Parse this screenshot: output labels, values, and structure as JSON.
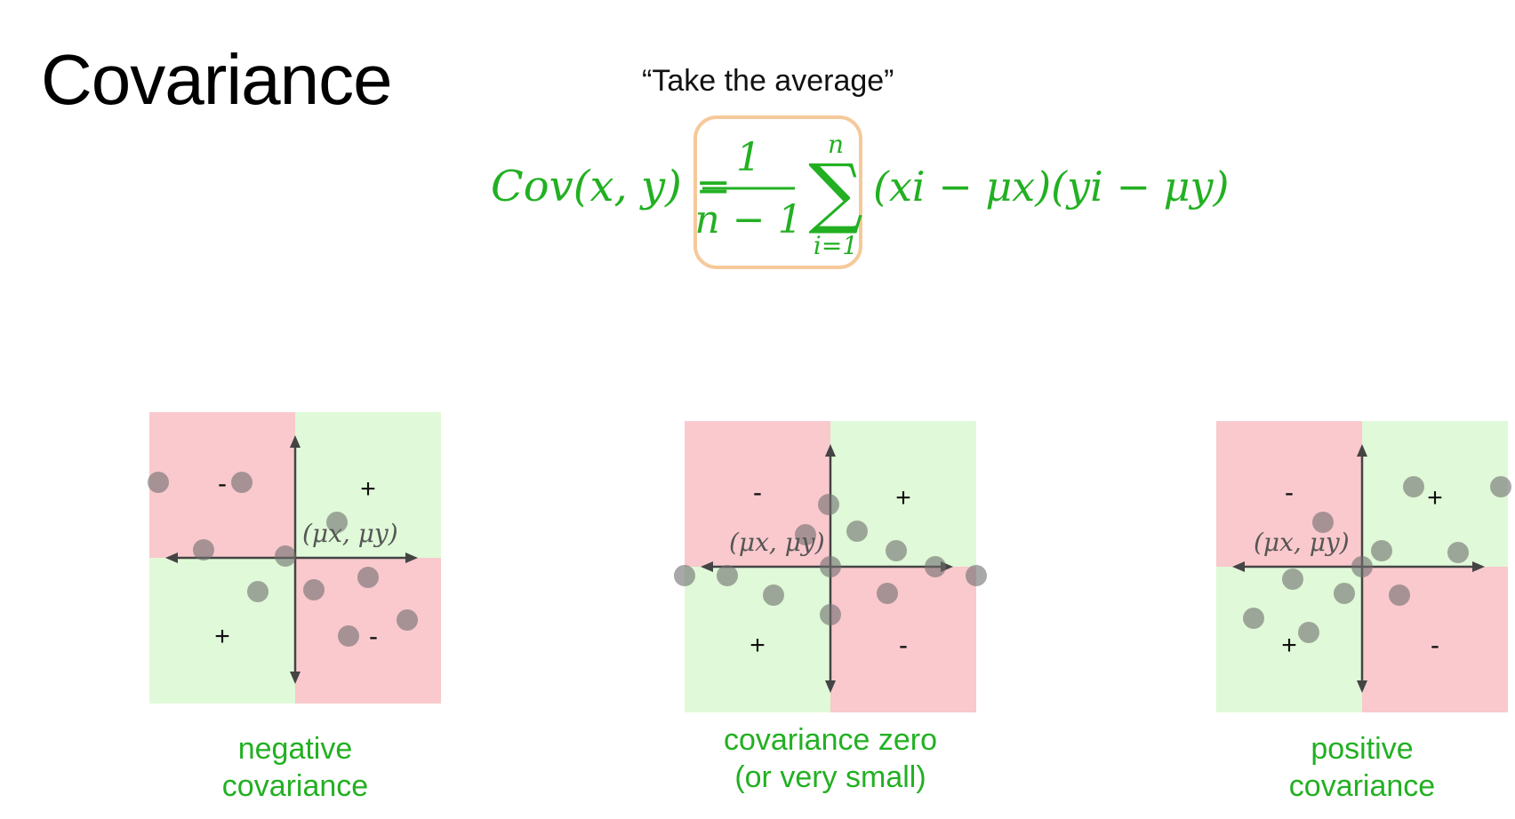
{
  "title": "Covariance",
  "annotation": "“Take the average”",
  "formula": {
    "lhs": "Cov(x, y) =",
    "numerator": "1",
    "denominator": "n − 1",
    "sum_upper": "n",
    "sum_lower": "i=1",
    "sum_symbol": "∑",
    "term": "(xi − μx)(yi − μy)"
  },
  "colors": {
    "green_text": "#22b022",
    "highlight": "#f6c99a",
    "quadrant_red": "#f9c9cd",
    "quadrant_green": "#e0f9d8",
    "point": "#6e6e6e",
    "axis": "#444444"
  },
  "mean_label": "(μx, μy)",
  "panels": [
    {
      "id": "negative",
      "caption": [
        "negative",
        "covariance"
      ],
      "quadrant_signs": {
        "top_left": "-",
        "top_right": "+",
        "bottom_left": "+",
        "bottom_right": "-"
      },
      "quadrant_colors": {
        "top_left": "red",
        "top_right": "green",
        "bottom_left": "green",
        "bottom_right": "red"
      }
    },
    {
      "id": "zero",
      "caption": [
        "covariance zero",
        "(or very small)"
      ],
      "quadrant_signs": {
        "top_left": "-",
        "top_right": "+",
        "bottom_left": "+",
        "bottom_right": "-"
      },
      "quadrant_colors": {
        "top_left": "red",
        "top_right": "green",
        "bottom_left": "green",
        "bottom_right": "red"
      }
    },
    {
      "id": "positive",
      "caption": [
        "positive",
        "covariance"
      ],
      "quadrant_signs": {
        "top_left": "-",
        "top_right": "+",
        "bottom_left": "+",
        "bottom_right": "-"
      },
      "quadrant_colors": {
        "top_left": "red",
        "top_right": "green",
        "bottom_left": "green",
        "bottom_right": "red"
      }
    }
  ]
}
